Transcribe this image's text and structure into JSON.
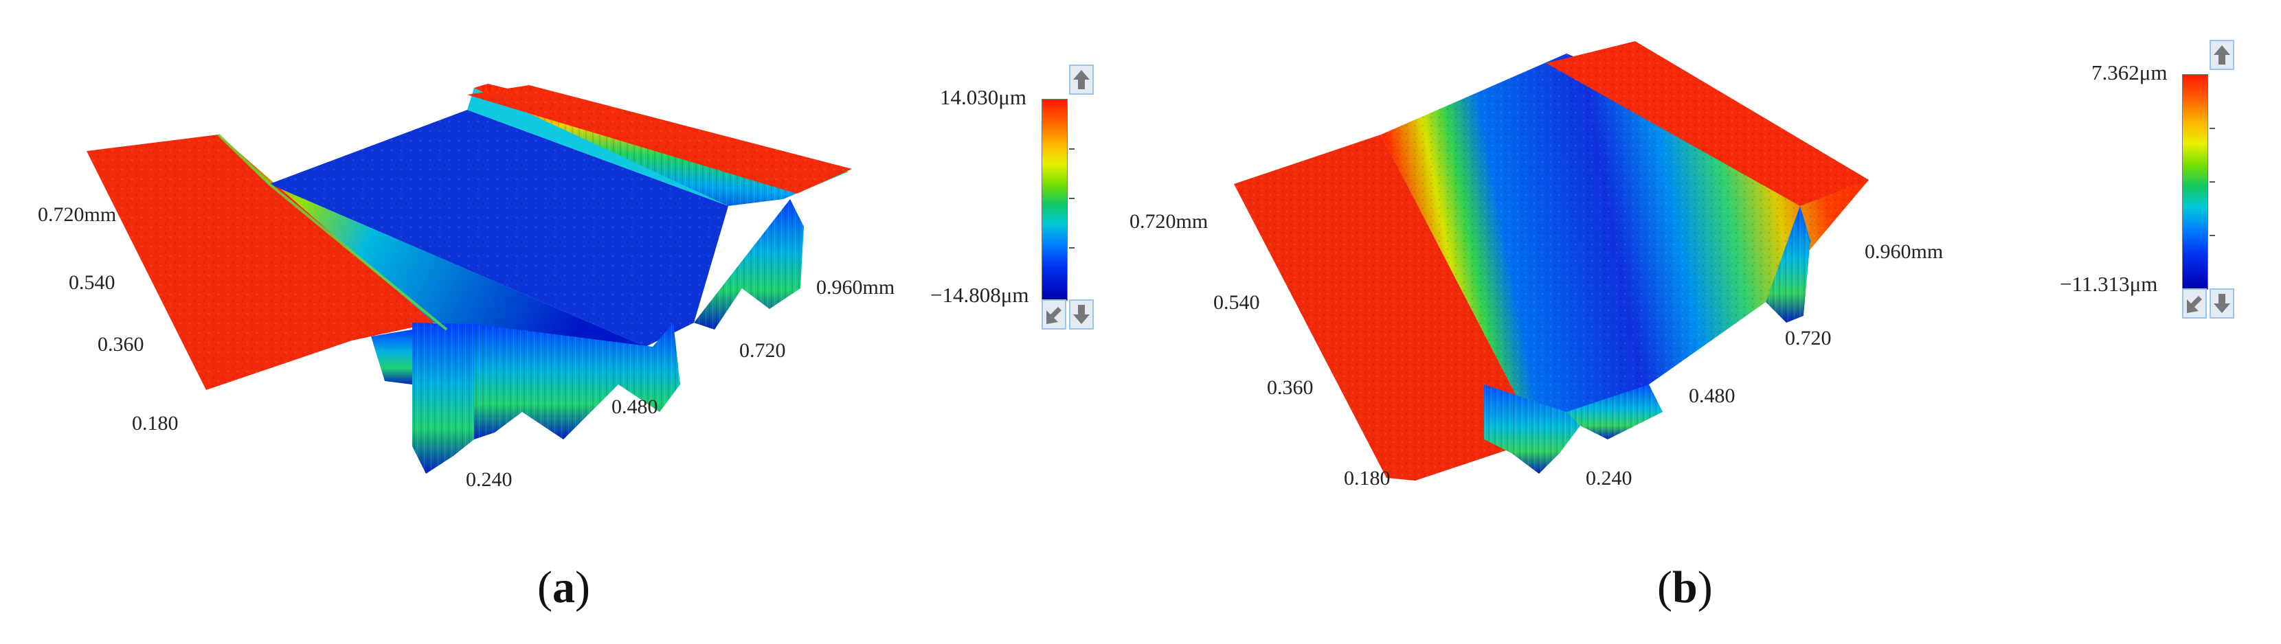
{
  "colors": {
    "high": "#ff2a00",
    "mid": "#40d040",
    "low": "#0010c0"
  },
  "icons": [
    "arrow-up-icon",
    "fit-view-icon",
    "arrow-down-icon"
  ],
  "panels": [
    {
      "caption_letter": "a",
      "colorbar": {
        "max": "14.030μm",
        "min": "−14.808μm"
      },
      "axis_labels": [
        "0.720mm",
        "0.540",
        "0.360",
        "0.180",
        "0.240",
        "0.480",
        "0.720",
        "0.960mm"
      ]
    },
    {
      "caption_letter": "b",
      "colorbar": {
        "max": "7.362μm",
        "min": "−11.313μm"
      },
      "axis_labels": [
        "0.720mm",
        "0.540",
        "0.360",
        "0.180",
        "0.240",
        "0.480",
        "0.720",
        "0.960mm"
      ]
    }
  ]
}
